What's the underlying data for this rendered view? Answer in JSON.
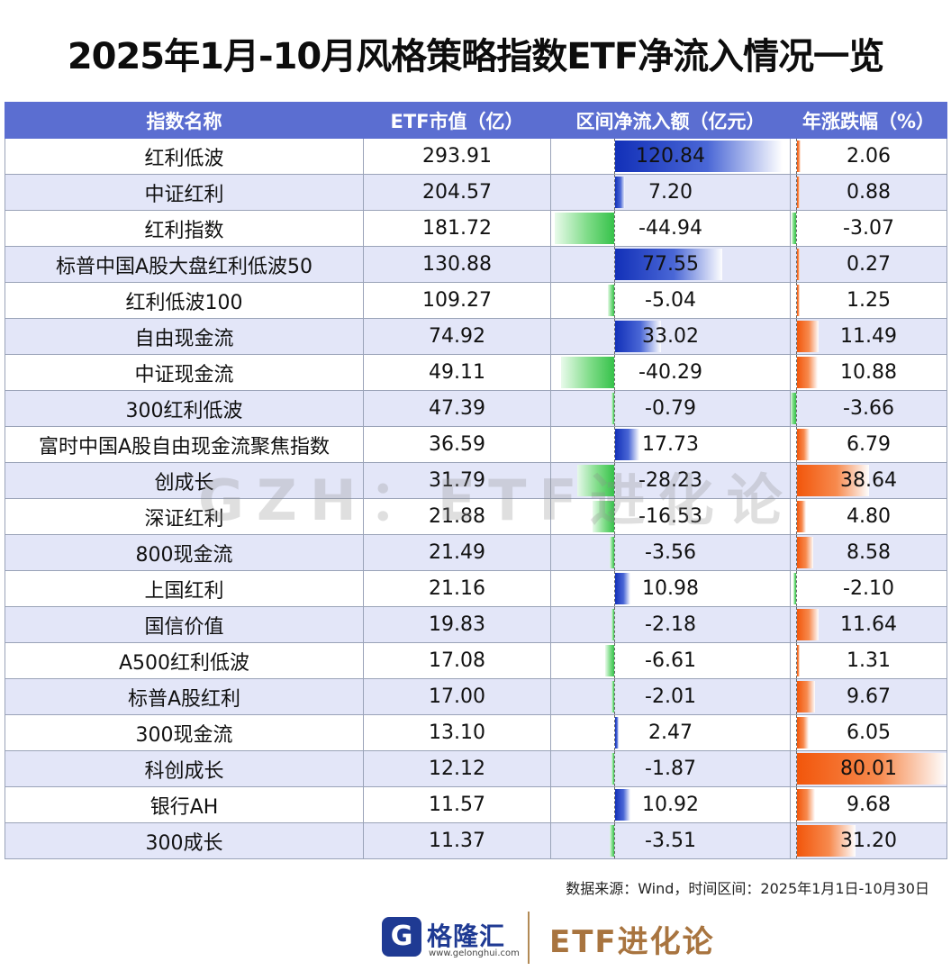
{
  "title": "2025年1月-10月风格策略指数ETF净流入情况一览",
  "source": "数据来源：Wind，时间区间：2025年1月1日-10月30日",
  "watermark": "GZH：ETF进化论",
  "footer": {
    "logo_glyph": "G",
    "logo_name": "格隆汇",
    "logo_url": "www.gelonghui.com",
    "brand": "ETF进化论"
  },
  "colors": {
    "header_bg": "#5b6ed1",
    "inflow_bar": "#1230b8",
    "negative_bar": "#36c24a",
    "return_bar": "#f2560b",
    "stripe": "#e3e6f8"
  },
  "chart_data": {
    "type": "table",
    "columns": [
      "指数名称",
      "ETF市值（亿）",
      "区间净流入额（亿元）",
      "年涨跌幅（%）"
    ],
    "rows": [
      {
        "name": "红利低波",
        "mv": "293.91",
        "flow": "120.84",
        "ret": "2.06"
      },
      {
        "name": "中证红利",
        "mv": "204.57",
        "flow": "7.20",
        "ret": "0.88"
      },
      {
        "name": "红利指数",
        "mv": "181.72",
        "flow": "-44.94",
        "ret": "-3.07"
      },
      {
        "name": "标普中国A股大盘红利低波50",
        "mv": "130.88",
        "flow": "77.55",
        "ret": "0.27"
      },
      {
        "name": "红利低波100",
        "mv": "109.27",
        "flow": "-5.04",
        "ret": "1.25"
      },
      {
        "name": "自由现金流",
        "mv": "74.92",
        "flow": "33.02",
        "ret": "11.49"
      },
      {
        "name": "中证现金流",
        "mv": "49.11",
        "flow": "-40.29",
        "ret": "10.88"
      },
      {
        "name": "300红利低波",
        "mv": "47.39",
        "flow": "-0.79",
        "ret": "-3.66"
      },
      {
        "name": "富时中国A股自由现金流聚焦指数",
        "mv": "36.59",
        "flow": "17.73",
        "ret": "6.79"
      },
      {
        "name": "创成长",
        "mv": "31.79",
        "flow": "-28.23",
        "ret": "38.64"
      },
      {
        "name": "深证红利",
        "mv": "21.88",
        "flow": "-16.53",
        "ret": "4.80"
      },
      {
        "name": "800现金流",
        "mv": "21.49",
        "flow": "-3.56",
        "ret": "8.58"
      },
      {
        "name": "上国红利",
        "mv": "21.16",
        "flow": "10.98",
        "ret": "-2.10"
      },
      {
        "name": "国信价值",
        "mv": "19.83",
        "flow": "-2.18",
        "ret": "11.64"
      },
      {
        "name": "A500红利低波",
        "mv": "17.08",
        "flow": "-6.61",
        "ret": "1.31"
      },
      {
        "name": "标普A股红利",
        "mv": "17.00",
        "flow": "-2.01",
        "ret": "9.67"
      },
      {
        "name": "300现金流",
        "mv": "13.10",
        "flow": "2.47",
        "ret": "6.05"
      },
      {
        "name": "科创成长",
        "mv": "12.12",
        "flow": "-1.87",
        "ret": "80.01"
      },
      {
        "name": "银行AH",
        "mv": "11.57",
        "flow": "10.92",
        "ret": "9.68"
      },
      {
        "name": "300成长",
        "mv": "11.37",
        "flow": "-3.51",
        "ret": "31.20"
      }
    ]
  }
}
